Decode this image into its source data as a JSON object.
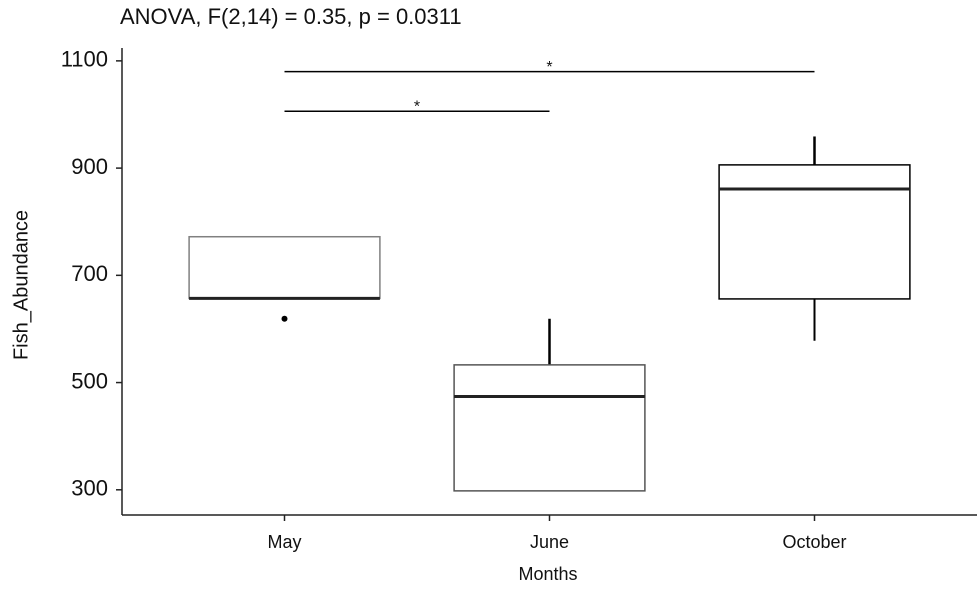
{
  "chart_data": {
    "type": "box",
    "title": "ANOVA, F(2,14) = 0.35, p = 0.0311",
    "x_label": "Months",
    "y_label": "Fish_Abundance",
    "categories": [
      "May",
      "June",
      "October"
    ],
    "series": [
      {
        "box_colors": [
          "#808080",
          "#555555",
          "#000000"
        ],
        "whisker_low": [
          657,
          298,
          578
        ],
        "q1": [
          657,
          298,
          656
        ],
        "median": [
          657,
          474,
          861
        ],
        "q3": [
          772,
          533,
          906
        ],
        "whisker_high": [
          772,
          619,
          959
        ],
        "outliers": [
          [
            619
          ],
          [],
          []
        ]
      }
    ],
    "comparisons": [
      {
        "groups": [
          0,
          1
        ],
        "y": 1006,
        "label": "*"
      },
      {
        "groups": [
          0,
          2
        ],
        "y": 1080,
        "label": "*"
      }
    ],
    "ylim": [
      253,
      1124
    ],
    "yticks": [
      300,
      500,
      700,
      900,
      1100
    ],
    "grid": false
  }
}
